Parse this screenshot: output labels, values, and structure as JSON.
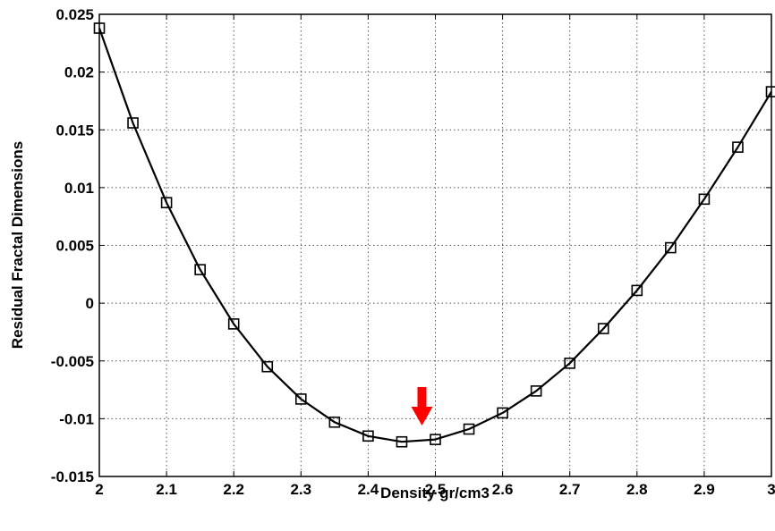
{
  "chart_data": {
    "type": "line",
    "title": "",
    "xlabel": "Density gr/cm3",
    "ylabel": "Residual Fractal Dimensions",
    "xlim": [
      2,
      3
    ],
    "ylim": [
      -0.015,
      0.025
    ],
    "grid": true,
    "x_ticks": [
      "2",
      "2.1",
      "2.2",
      "2.3",
      "2.4",
      "2.5",
      "2.6",
      "2.7",
      "2.8",
      "2.9",
      "3"
    ],
    "y_ticks": [
      "0.025",
      "0.02",
      "0.015",
      "0.01",
      "0.005",
      "0",
      "-0.005",
      "-0.01",
      "-0.015"
    ],
    "series": [
      {
        "marker": "square",
        "color": "#000000",
        "x": [
          2.0,
          2.05,
          2.1,
          2.15,
          2.2,
          2.25,
          2.3,
          2.35,
          2.4,
          2.45,
          2.5,
          2.55,
          2.6,
          2.65,
          2.7,
          2.75,
          2.8,
          2.85,
          2.9,
          2.95,
          3.0
        ],
        "y": [
          0.0238,
          0.0156,
          0.0087,
          0.0029,
          -0.0018,
          -0.0055,
          -0.0083,
          -0.0103,
          -0.0115,
          -0.012,
          -0.0118,
          -0.0109,
          -0.0095,
          -0.0076,
          -0.0052,
          -0.0022,
          0.0011,
          0.0048,
          0.009,
          0.0135,
          0.0183
        ]
      }
    ],
    "annotations": [
      {
        "type": "arrow",
        "direction": "down",
        "x": 2.48,
        "color": "#ff0000"
      }
    ]
  }
}
